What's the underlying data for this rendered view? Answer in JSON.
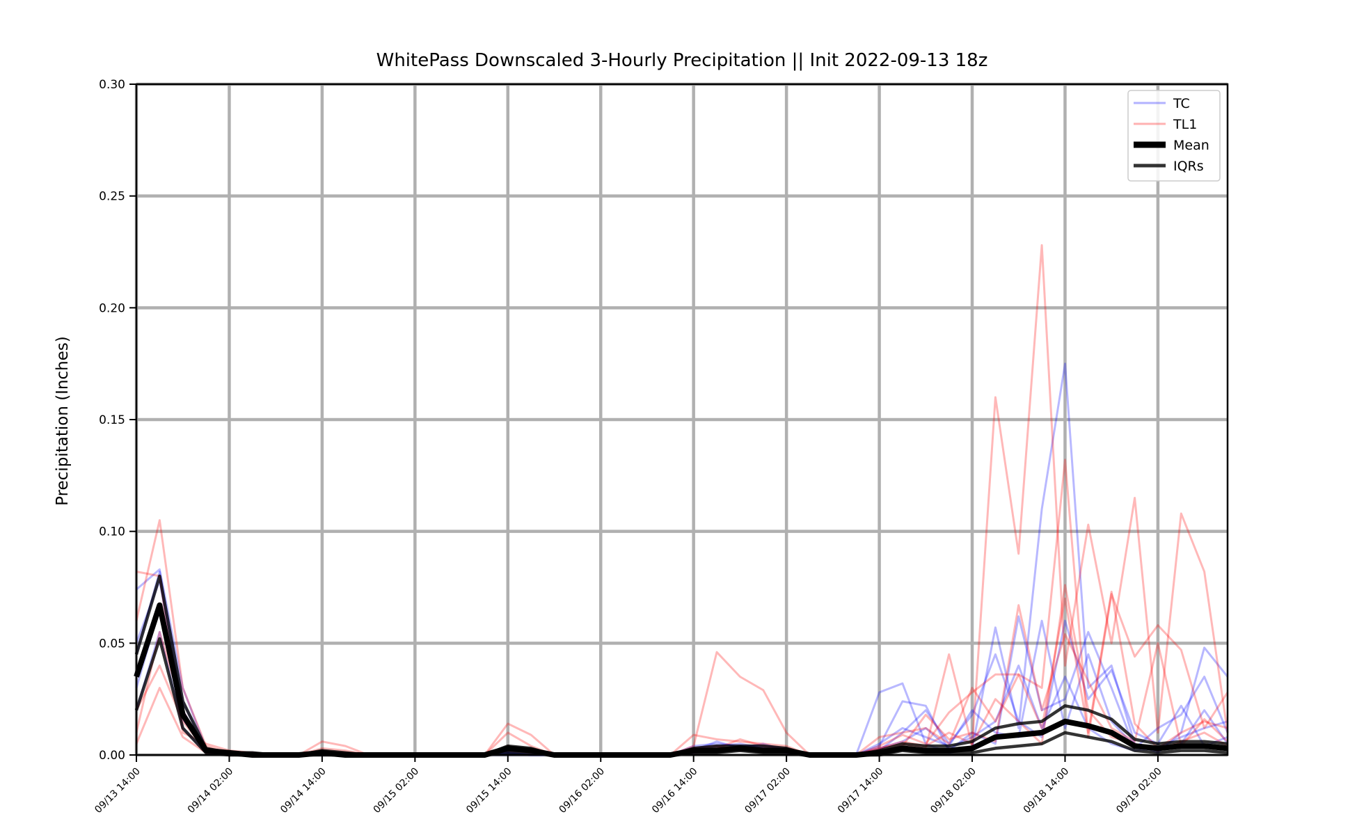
{
  "chart_data": {
    "type": "line",
    "title": "WhitePass Downscaled 3-Hourly Precipitation || Init 2022-09-13 18z",
    "xlabel": "",
    "ylabel": "Precipitation (Inches)",
    "ylim": [
      0,
      0.3
    ],
    "yticks": [
      "0.00",
      "0.05",
      "0.10",
      "0.15",
      "0.20",
      "0.25",
      "0.30"
    ],
    "xticks": [
      "09/13 14:00",
      "09/14 02:00",
      "09/14 14:00",
      "09/15 02:00",
      "09/15 14:00",
      "09/16 02:00",
      "09/16 14:00",
      "09/17 02:00",
      "09/17 14:00",
      "09/18 02:00",
      "09/18 14:00",
      "09/19 02:00"
    ],
    "x": [
      "09/13 14:00",
      "09/13 17:00",
      "09/13 20:00",
      "09/13 23:00",
      "09/14 02:00",
      "09/14 05:00",
      "09/14 08:00",
      "09/14 11:00",
      "09/14 14:00",
      "09/14 17:00",
      "09/14 20:00",
      "09/14 23:00",
      "09/15 02:00",
      "09/15 05:00",
      "09/15 08:00",
      "09/15 11:00",
      "09/15 14:00",
      "09/15 17:00",
      "09/15 20:00",
      "09/15 23:00",
      "09/16 02:00",
      "09/16 05:00",
      "09/16 08:00",
      "09/16 11:00",
      "09/16 14:00",
      "09/16 17:00",
      "09/16 20:00",
      "09/16 23:00",
      "09/17 02:00",
      "09/17 05:00",
      "09/17 08:00",
      "09/17 11:00",
      "09/17 14:00",
      "09/17 17:00",
      "09/17 20:00",
      "09/17 23:00",
      "09/18 02:00",
      "09/18 05:00",
      "09/18 08:00",
      "09/18 11:00",
      "09/18 14:00",
      "09/18 17:00",
      "09/18 20:00",
      "09/18 23:00",
      "09/19 02:00",
      "09/19 05:00",
      "09/19 08:00",
      "09/19 11:00"
    ],
    "grid": true,
    "legend_position": "top-right",
    "legend": [
      "TC",
      "TL1",
      "Mean",
      "IQRs"
    ],
    "colors": {
      "TC": "#0000ff",
      "TL1": "#ff0000",
      "Mean": "#000000",
      "IQRs": "#000000",
      "grid": "#b0b0b0"
    },
    "series": [
      {
        "group": "TC",
        "values": [
          0.074,
          0.083,
          0.03,
          0.003,
          0.001,
          0.001,
          0.0,
          0.0,
          0.001,
          0.0,
          0.0,
          0.0,
          0.0,
          0.0,
          0.0,
          0.0,
          0.002,
          0.001,
          0.0,
          0.0,
          0.0,
          0.0,
          0.0,
          0.0,
          0.004,
          0.005,
          0.004,
          0.004,
          0.003,
          0.0,
          0.0,
          0.0,
          0.028,
          0.032,
          0.005,
          0.001,
          0.003,
          0.057,
          0.012,
          0.11,
          0.175,
          0.03,
          0.04,
          0.005,
          0.001,
          0.01,
          0.048,
          0.035
        ]
      },
      {
        "group": "TC",
        "values": [
          0.05,
          0.078,
          0.02,
          0.002,
          0.001,
          0.0,
          0.0,
          0.0,
          0.0,
          0.0,
          0.0,
          0.0,
          0.0,
          0.0,
          0.0,
          0.0,
          0.001,
          0.0,
          0.0,
          0.0,
          0.0,
          0.0,
          0.0,
          0.0,
          0.002,
          0.006,
          0.003,
          0.005,
          0.002,
          0.0,
          0.0,
          0.0,
          0.004,
          0.024,
          0.022,
          0.002,
          0.01,
          0.005,
          0.062,
          0.02,
          0.025,
          0.055,
          0.03,
          0.003,
          0.012,
          0.018,
          0.035,
          0.01
        ]
      },
      {
        "group": "TC",
        "values": [
          0.03,
          0.066,
          0.016,
          0.002,
          0.0,
          0.0,
          0.0,
          0.0,
          0.0,
          0.0,
          0.0,
          0.0,
          0.0,
          0.0,
          0.0,
          0.0,
          0.001,
          0.0,
          0.0,
          0.0,
          0.0,
          0.0,
          0.0,
          0.0,
          0.001,
          0.003,
          0.002,
          0.003,
          0.001,
          0.0,
          0.0,
          0.0,
          0.002,
          0.01,
          0.02,
          0.005,
          0.018,
          0.045,
          0.015,
          0.008,
          0.06,
          0.025,
          0.038,
          0.01,
          0.005,
          0.022,
          0.004,
          0.008
        ]
      },
      {
        "group": "TC",
        "values": [
          0.02,
          0.055,
          0.012,
          0.001,
          0.0,
          0.0,
          0.0,
          0.0,
          0.0,
          0.0,
          0.0,
          0.0,
          0.0,
          0.0,
          0.0,
          0.0,
          0.0,
          0.0,
          0.0,
          0.0,
          0.0,
          0.0,
          0.0,
          0.0,
          0.001,
          0.002,
          0.004,
          0.002,
          0.001,
          0.0,
          0.0,
          0.0,
          0.003,
          0.006,
          0.012,
          0.003,
          0.008,
          0.015,
          0.04,
          0.012,
          0.035,
          0.012,
          0.005,
          0.002,
          0.003,
          0.008,
          0.012,
          0.015
        ]
      },
      {
        "group": "TC",
        "values": [
          0.045,
          0.082,
          0.024,
          0.002,
          0.001,
          0.0,
          0.0,
          0.0,
          0.0,
          0.0,
          0.0,
          0.0,
          0.0,
          0.0,
          0.0,
          0.0,
          0.001,
          0.0,
          0.0,
          0.0,
          0.0,
          0.0,
          0.0,
          0.0,
          0.003,
          0.004,
          0.005,
          0.003,
          0.002,
          0.0,
          0.0,
          0.0,
          0.005,
          0.012,
          0.008,
          0.004,
          0.02,
          0.01,
          0.008,
          0.06,
          0.012,
          0.045,
          0.015,
          0.004,
          0.002,
          0.005,
          0.02,
          0.005
        ]
      },
      {
        "group": "TL1",
        "values": [
          0.082,
          0.08,
          0.01,
          0.005,
          0.002,
          0.001,
          0.0,
          0.0,
          0.003,
          0.002,
          0.0,
          0.0,
          0.0,
          0.0,
          0.0,
          0.0,
          0.014,
          0.009,
          0.0,
          0.0,
          0.0,
          0.0,
          0.0,
          0.0,
          0.009,
          0.007,
          0.006,
          0.005,
          0.004,
          0.0,
          0.0,
          0.0,
          0.003,
          0.005,
          0.003,
          0.045,
          0.004,
          0.16,
          0.09,
          0.228,
          0.04,
          0.103,
          0.05,
          0.115,
          0.01,
          0.108,
          0.082,
          0.01
        ]
      },
      {
        "group": "TL1",
        "values": [
          0.06,
          0.105,
          0.03,
          0.004,
          0.001,
          0.0,
          0.0,
          0.0,
          0.006,
          0.004,
          0.0,
          0.0,
          0.0,
          0.0,
          0.0,
          0.0,
          0.01,
          0.004,
          0.0,
          0.0,
          0.0,
          0.0,
          0.0,
          0.0,
          0.004,
          0.046,
          0.035,
          0.029,
          0.01,
          0.0,
          0.0,
          0.0,
          0.008,
          0.01,
          0.012,
          0.005,
          0.03,
          0.015,
          0.036,
          0.03,
          0.132,
          0.008,
          0.072,
          0.044,
          0.058,
          0.047,
          0.012,
          0.028
        ]
      },
      {
        "group": "TL1",
        "values": [
          0.01,
          0.055,
          0.02,
          0.001,
          0.0,
          0.0,
          0.0,
          0.0,
          0.002,
          0.001,
          0.0,
          0.0,
          0.0,
          0.0,
          0.0,
          0.0,
          0.004,
          0.002,
          0.0,
          0.0,
          0.0,
          0.0,
          0.0,
          0.0,
          0.002,
          0.003,
          0.007,
          0.004,
          0.003,
          0.0,
          0.0,
          0.0,
          0.004,
          0.009,
          0.005,
          0.019,
          0.028,
          0.036,
          0.036,
          0.012,
          0.07,
          0.01,
          0.073,
          0.014,
          0.003,
          0.01,
          0.015,
          0.012
        ]
      },
      {
        "group": "TL1",
        "values": [
          0.005,
          0.03,
          0.008,
          0.001,
          0.0,
          0.0,
          0.0,
          0.0,
          0.001,
          0.0,
          0.0,
          0.0,
          0.0,
          0.0,
          0.0,
          0.0,
          0.002,
          0.001,
          0.0,
          0.0,
          0.0,
          0.0,
          0.0,
          0.0,
          0.001,
          0.002,
          0.003,
          0.002,
          0.001,
          0.0,
          0.0,
          0.0,
          0.002,
          0.004,
          0.018,
          0.007,
          0.01,
          0.006,
          0.067,
          0.02,
          0.054,
          0.033,
          0.012,
          0.006,
          0.05,
          0.004,
          0.016,
          0.006
        ]
      },
      {
        "group": "TL1",
        "values": [
          0.02,
          0.04,
          0.015,
          0.002,
          0.0,
          0.0,
          0.0,
          0.0,
          0.001,
          0.001,
          0.0,
          0.0,
          0.0,
          0.0,
          0.0,
          0.0,
          0.003,
          0.002,
          0.0,
          0.0,
          0.0,
          0.0,
          0.0,
          0.0,
          0.003,
          0.004,
          0.002,
          0.003,
          0.002,
          0.0,
          0.0,
          0.0,
          0.003,
          0.006,
          0.004,
          0.01,
          0.005,
          0.025,
          0.015,
          0.005,
          0.076,
          0.02,
          0.008,
          0.005,
          0.002,
          0.006,
          0.01,
          0.004
        ]
      },
      {
        "group": "Mean",
        "values": [
          0.035,
          0.067,
          0.018,
          0.002,
          0.001,
          0.0,
          0.0,
          0.0,
          0.001,
          0.0,
          0.0,
          0.0,
          0.0,
          0.0,
          0.0,
          0.0,
          0.003,
          0.002,
          0.0,
          0.0,
          0.0,
          0.0,
          0.0,
          0.0,
          0.002,
          0.002,
          0.003,
          0.002,
          0.002,
          0.0,
          0.0,
          0.0,
          0.001,
          0.003,
          0.002,
          0.002,
          0.003,
          0.008,
          0.009,
          0.01,
          0.015,
          0.013,
          0.01,
          0.004,
          0.003,
          0.004,
          0.004,
          0.003
        ]
      },
      {
        "group": "IQRs",
        "values": [
          0.02,
          0.052,
          0.012,
          0.001,
          0.0,
          0.0,
          0.0,
          0.0,
          0.0,
          0.0,
          0.0,
          0.0,
          0.0,
          0.0,
          0.0,
          0.0,
          0.001,
          0.001,
          0.0,
          0.0,
          0.0,
          0.0,
          0.0,
          0.0,
          0.001,
          0.001,
          0.002,
          0.001,
          0.001,
          0.0,
          0.0,
          0.0,
          0.0,
          0.002,
          0.001,
          0.001,
          0.001,
          0.003,
          0.004,
          0.005,
          0.01,
          0.008,
          0.006,
          0.002,
          0.001,
          0.002,
          0.002,
          0.001
        ]
      },
      {
        "group": "IQRs",
        "values": [
          0.045,
          0.08,
          0.024,
          0.003,
          0.001,
          0.001,
          0.0,
          0.0,
          0.002,
          0.001,
          0.0,
          0.0,
          0.0,
          0.0,
          0.0,
          0.0,
          0.004,
          0.003,
          0.0,
          0.0,
          0.0,
          0.0,
          0.0,
          0.0,
          0.003,
          0.004,
          0.004,
          0.004,
          0.003,
          0.0,
          0.0,
          0.0,
          0.002,
          0.005,
          0.004,
          0.004,
          0.006,
          0.012,
          0.014,
          0.015,
          0.022,
          0.02,
          0.016,
          0.007,
          0.005,
          0.006,
          0.006,
          0.005
        ]
      }
    ]
  }
}
